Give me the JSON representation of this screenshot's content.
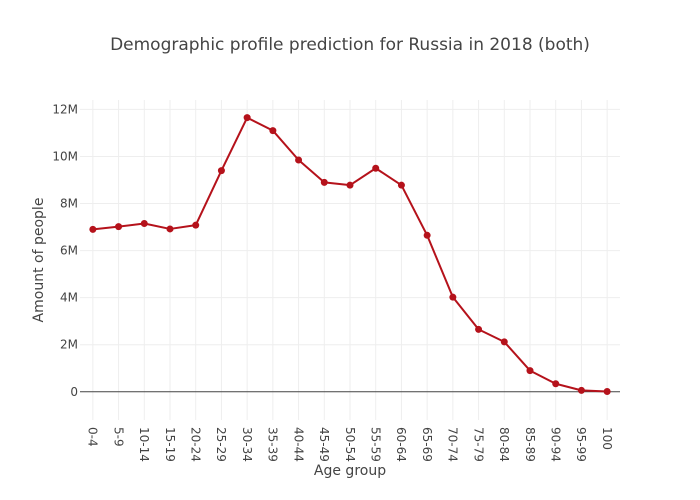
{
  "chart_data": {
    "type": "line",
    "title": "Demographic profile prediction for Russia in 2018 (both)",
    "xlabel": "Age group",
    "ylabel": "Amount of people",
    "categories": [
      "0-4",
      "5-9",
      "10-14",
      "15-19",
      "20-24",
      "25-29",
      "30-34",
      "35-39",
      "40-44",
      "45-49",
      "50-54",
      "55-59",
      "60-64",
      "65-69",
      "70-74",
      "75-79",
      "80-84",
      "85-89",
      "90-94",
      "95-99",
      "100"
    ],
    "series": [
      {
        "values": [
          6900000,
          7020000,
          7150000,
          6920000,
          7080000,
          9400000,
          11650000,
          11100000,
          9850000,
          8900000,
          8780000,
          9500000,
          8780000,
          6650000,
          4020000,
          2650000,
          2120000,
          900000,
          340000,
          60000,
          10000
        ],
        "color": "#b5121b"
      }
    ],
    "ylim": [
      -1200000,
      12400000
    ],
    "yticks": [
      0,
      2000000,
      4000000,
      6000000,
      8000000,
      10000000,
      12000000
    ],
    "ytick_labels": [
      "0",
      "2M",
      "4M",
      "6M",
      "8M",
      "10M",
      "12M"
    ],
    "grid": true,
    "legend": "none"
  }
}
